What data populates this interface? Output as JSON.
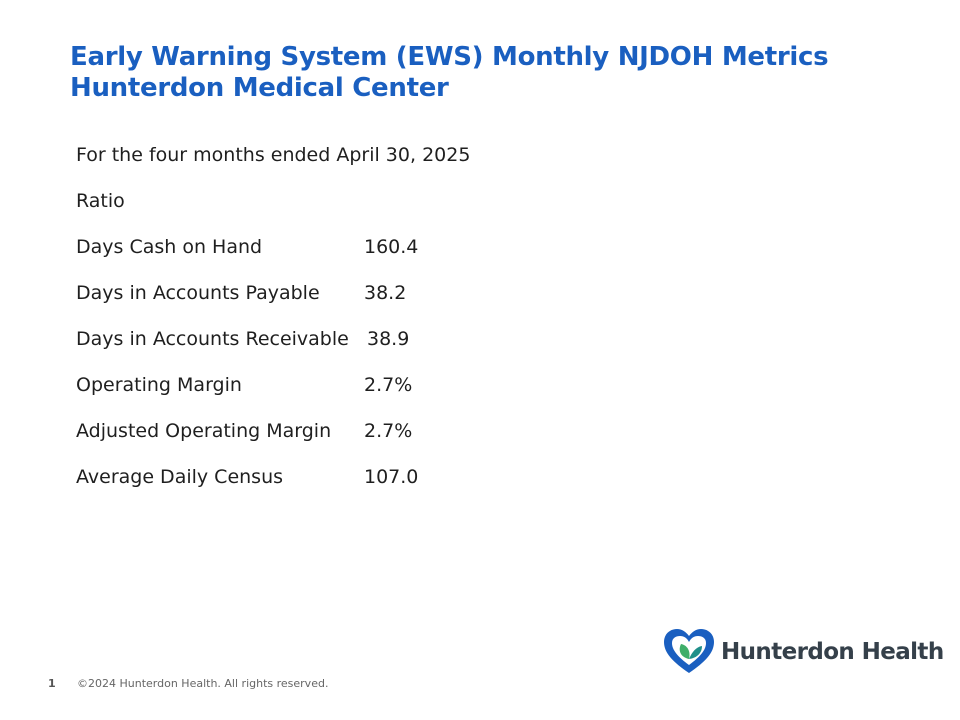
{
  "title": {
    "line1": "Early Warning System (EWS) Monthly NJDOH Metrics",
    "line2": "Hunterdon Medical Center"
  },
  "period": "For the four months ended April 30, 2025",
  "ratio_header": "Ratio",
  "metrics": [
    {
      "label": "Days Cash on Hand",
      "value": "160.4"
    },
    {
      "label": "Days in Accounts Payable",
      "value": "38.2"
    },
    {
      "label": "Days in Accounts Receivable",
      "value": "38.9"
    },
    {
      "label": "Operating Margin",
      "value": "2.7%"
    },
    {
      "label": "Adjusted Operating Margin",
      "value": "2.7%"
    },
    {
      "label": "Average Daily Census",
      "value": "107.0"
    }
  ],
  "footer": {
    "page_number": "1",
    "copyright": "©2024 Hunterdon Health. All rights reserved."
  },
  "logo": {
    "text": "Hunterdon Health",
    "icon": "heart-leaf-icon",
    "colors": {
      "heart": "#1a5fc0",
      "leaf": "#3fae6a",
      "text": "#35404a"
    }
  },
  "colors": {
    "title": "#1a5fc0",
    "body_text": "#1f1f1f",
    "footer_text": "#666666"
  }
}
